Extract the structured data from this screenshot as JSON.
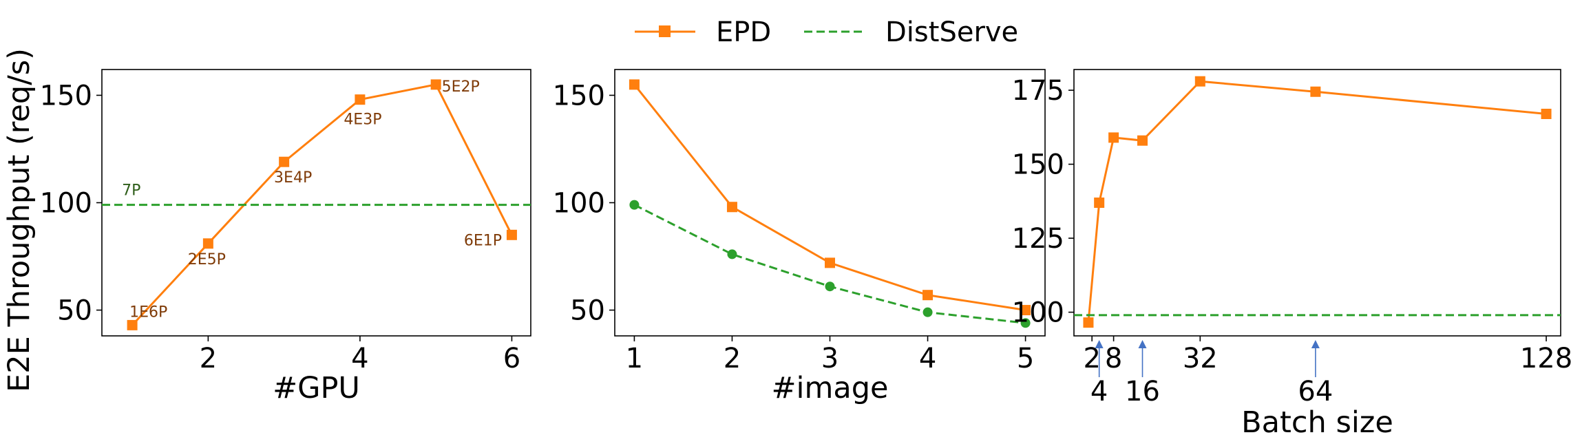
{
  "colors": {
    "epd": "#ff7f0e",
    "distserve": "#2ca02c",
    "annotation_text": "#7f3b08",
    "arrow": "#4472c4"
  },
  "legend": {
    "placement": "top-center",
    "items": [
      "EPD",
      "DistServe"
    ]
  },
  "ylabel": "E2E Throughput (req/s)",
  "chart_data": [
    {
      "type": "line",
      "xlabel": "#GPU",
      "ylabel": "E2E Throughput (req/s)",
      "xlim": [
        0.6,
        6.25
      ],
      "ylim": [
        38,
        162
      ],
      "xticks": [
        2,
        4,
        6
      ],
      "yticks": [
        50,
        100,
        150
      ],
      "series": [
        {
          "name": "EPD",
          "marker": "square",
          "x": [
            1,
            2,
            3,
            4,
            5,
            6
          ],
          "y": [
            43,
            81,
            119,
            148,
            155,
            85
          ]
        },
        {
          "name": "DistServe",
          "style": "dashed-hline",
          "y": 99
        }
      ],
      "annotations": [
        {
          "text": "1E6P",
          "x": 1,
          "y": 43
        },
        {
          "text": "2E5P",
          "x": 2,
          "y": 81
        },
        {
          "text": "3E4P",
          "x": 3,
          "y": 119
        },
        {
          "text": "4E3P",
          "x": 4,
          "y": 148
        },
        {
          "text": "5E2P",
          "x": 5,
          "y": 155
        },
        {
          "text": "6E1P",
          "x": 6,
          "y": 85
        },
        {
          "text": "7P",
          "x": 1,
          "y": 99
        }
      ]
    },
    {
      "type": "line",
      "xlabel": "#image",
      "xlim": [
        0.8,
        5.2
      ],
      "ylim": [
        38,
        162
      ],
      "xticks": [
        1,
        2,
        3,
        4,
        5
      ],
      "yticks": [
        50,
        100,
        150
      ],
      "series": [
        {
          "name": "EPD",
          "marker": "square",
          "x": [
            1,
            2,
            3,
            4,
            5
          ],
          "y": [
            155,
            98,
            72,
            57,
            50
          ]
        },
        {
          "name": "DistServe",
          "marker": "circle",
          "style": "dashed",
          "x": [
            1,
            2,
            3,
            4,
            5
          ],
          "y": [
            99,
            76,
            61,
            49,
            44
          ]
        }
      ]
    },
    {
      "type": "line",
      "xlabel": "Batch size",
      "xlim": [
        -3,
        132
      ],
      "ylim": [
        92,
        182
      ],
      "xticks": [
        2,
        8,
        32,
        128
      ],
      "yticks": [
        100,
        125,
        150,
        175
      ],
      "series": [
        {
          "name": "EPD",
          "marker": "square",
          "x": [
            1,
            4,
            8,
            16,
            32,
            64,
            128
          ],
          "y": [
            96.5,
            137,
            159,
            158,
            178,
            174.5,
            167
          ]
        },
        {
          "name": "DistServe",
          "style": "dashed-hline",
          "y": 99
        }
      ],
      "arrow_annotations": [
        {
          "text": "4",
          "x": 4
        },
        {
          "text": "16",
          "x": 16
        },
        {
          "text": "64",
          "x": 64
        }
      ]
    }
  ]
}
